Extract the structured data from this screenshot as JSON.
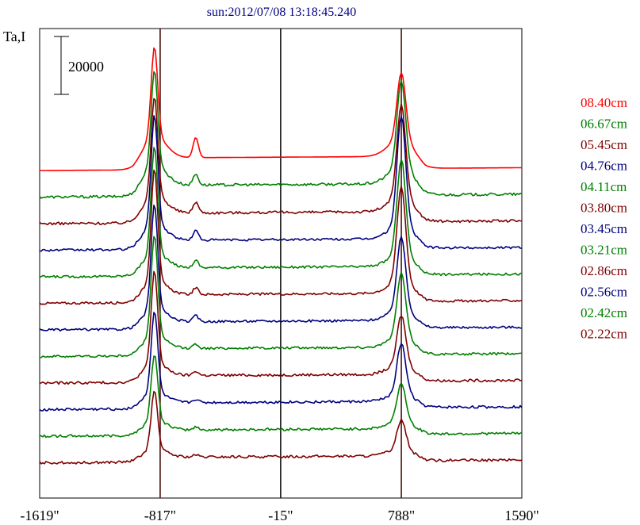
{
  "chart_data": {
    "type": "line",
    "title": "sun:2012/07/08 13:18:45.240",
    "ylabel": "Ta,I",
    "xlabel": "",
    "scale_bar": {
      "label": "20000",
      "value": 20000
    },
    "x_ticks": [
      {
        "value": -1619,
        "label": "-1619\""
      },
      {
        "value": -817,
        "label": "-817\""
      },
      {
        "value": -15,
        "label": "-15\""
      },
      {
        "value": 788,
        "label": "788\""
      },
      {
        "value": 1590,
        "label": "1590\""
      }
    ],
    "xlim": [
      -1619,
      1590
    ],
    "vertical_lines": [
      -817,
      -15,
      788
    ],
    "offset_step": 20000,
    "series": [
      {
        "name": "08.40cm",
        "color": "#ff0000",
        "baseline": 8,
        "peak_left": 31000,
        "peak_right": 23000,
        "bump": 7000,
        "shoulder": 7500,
        "noise": 0
      },
      {
        "name": "06.67cm",
        "color": "#008000",
        "baseline": 11,
        "peak_left": 32500,
        "peak_right": 30000,
        "bump": 3800,
        "shoulder": 7000,
        "noise": 900
      },
      {
        "name": "05.45cm",
        "color": "#800000",
        "baseline": 12,
        "peak_left": 34000,
        "peak_right": 32000,
        "bump": 3800,
        "shoulder": 6200,
        "noise": 900
      },
      {
        "name": "04.76cm",
        "color": "#000080",
        "baseline": 15,
        "peak_left": 37500,
        "peak_right": 38000,
        "bump": 3300,
        "shoulder": 5800,
        "noise": 800
      },
      {
        "name": "04.11cm",
        "color": "#008000",
        "baseline": 16,
        "peak_left": 37000,
        "peak_right": 33000,
        "bump": 2500,
        "shoulder": 5200,
        "noise": 800
      },
      {
        "name": "03.80cm",
        "color": "#800000",
        "baseline": 18,
        "peak_left": 39000,
        "peak_right": 33000,
        "bump": 2300,
        "shoulder": 5000,
        "noise": 800
      },
      {
        "name": "03.45cm",
        "color": "#000080",
        "baseline": 19,
        "peak_left": 36000,
        "peak_right": 25000,
        "bump": 2000,
        "shoulder": 4700,
        "noise": 800
      },
      {
        "name": "03.21cm",
        "color": "#008000",
        "baseline": 20,
        "peak_left": 35000,
        "peak_right": 22000,
        "bump": 1600,
        "shoulder": 4500,
        "noise": 800
      },
      {
        "name": "02.86cm",
        "color": "#800000",
        "baseline": 21,
        "peak_left": 32000,
        "peak_right": 17000,
        "bump": 1500,
        "shoulder": 4200,
        "noise": 900
      },
      {
        "name": "02.56cm",
        "color": "#000080",
        "baseline": 22,
        "peak_left": 28000,
        "peak_right": 17000,
        "bump": 1200,
        "shoulder": 3800,
        "noise": 900
      },
      {
        "name": "02.42cm",
        "color": "#008000",
        "baseline": 23,
        "peak_left": 23000,
        "peak_right": 13000,
        "bump": 1000,
        "shoulder": 3400,
        "noise": 900
      },
      {
        "name": "02.22cm",
        "color": "#800000",
        "baseline": 24,
        "peak_left": 20000,
        "peak_right": 10000,
        "bump": 700,
        "shoulder": 3000,
        "noise": 900
      }
    ]
  }
}
